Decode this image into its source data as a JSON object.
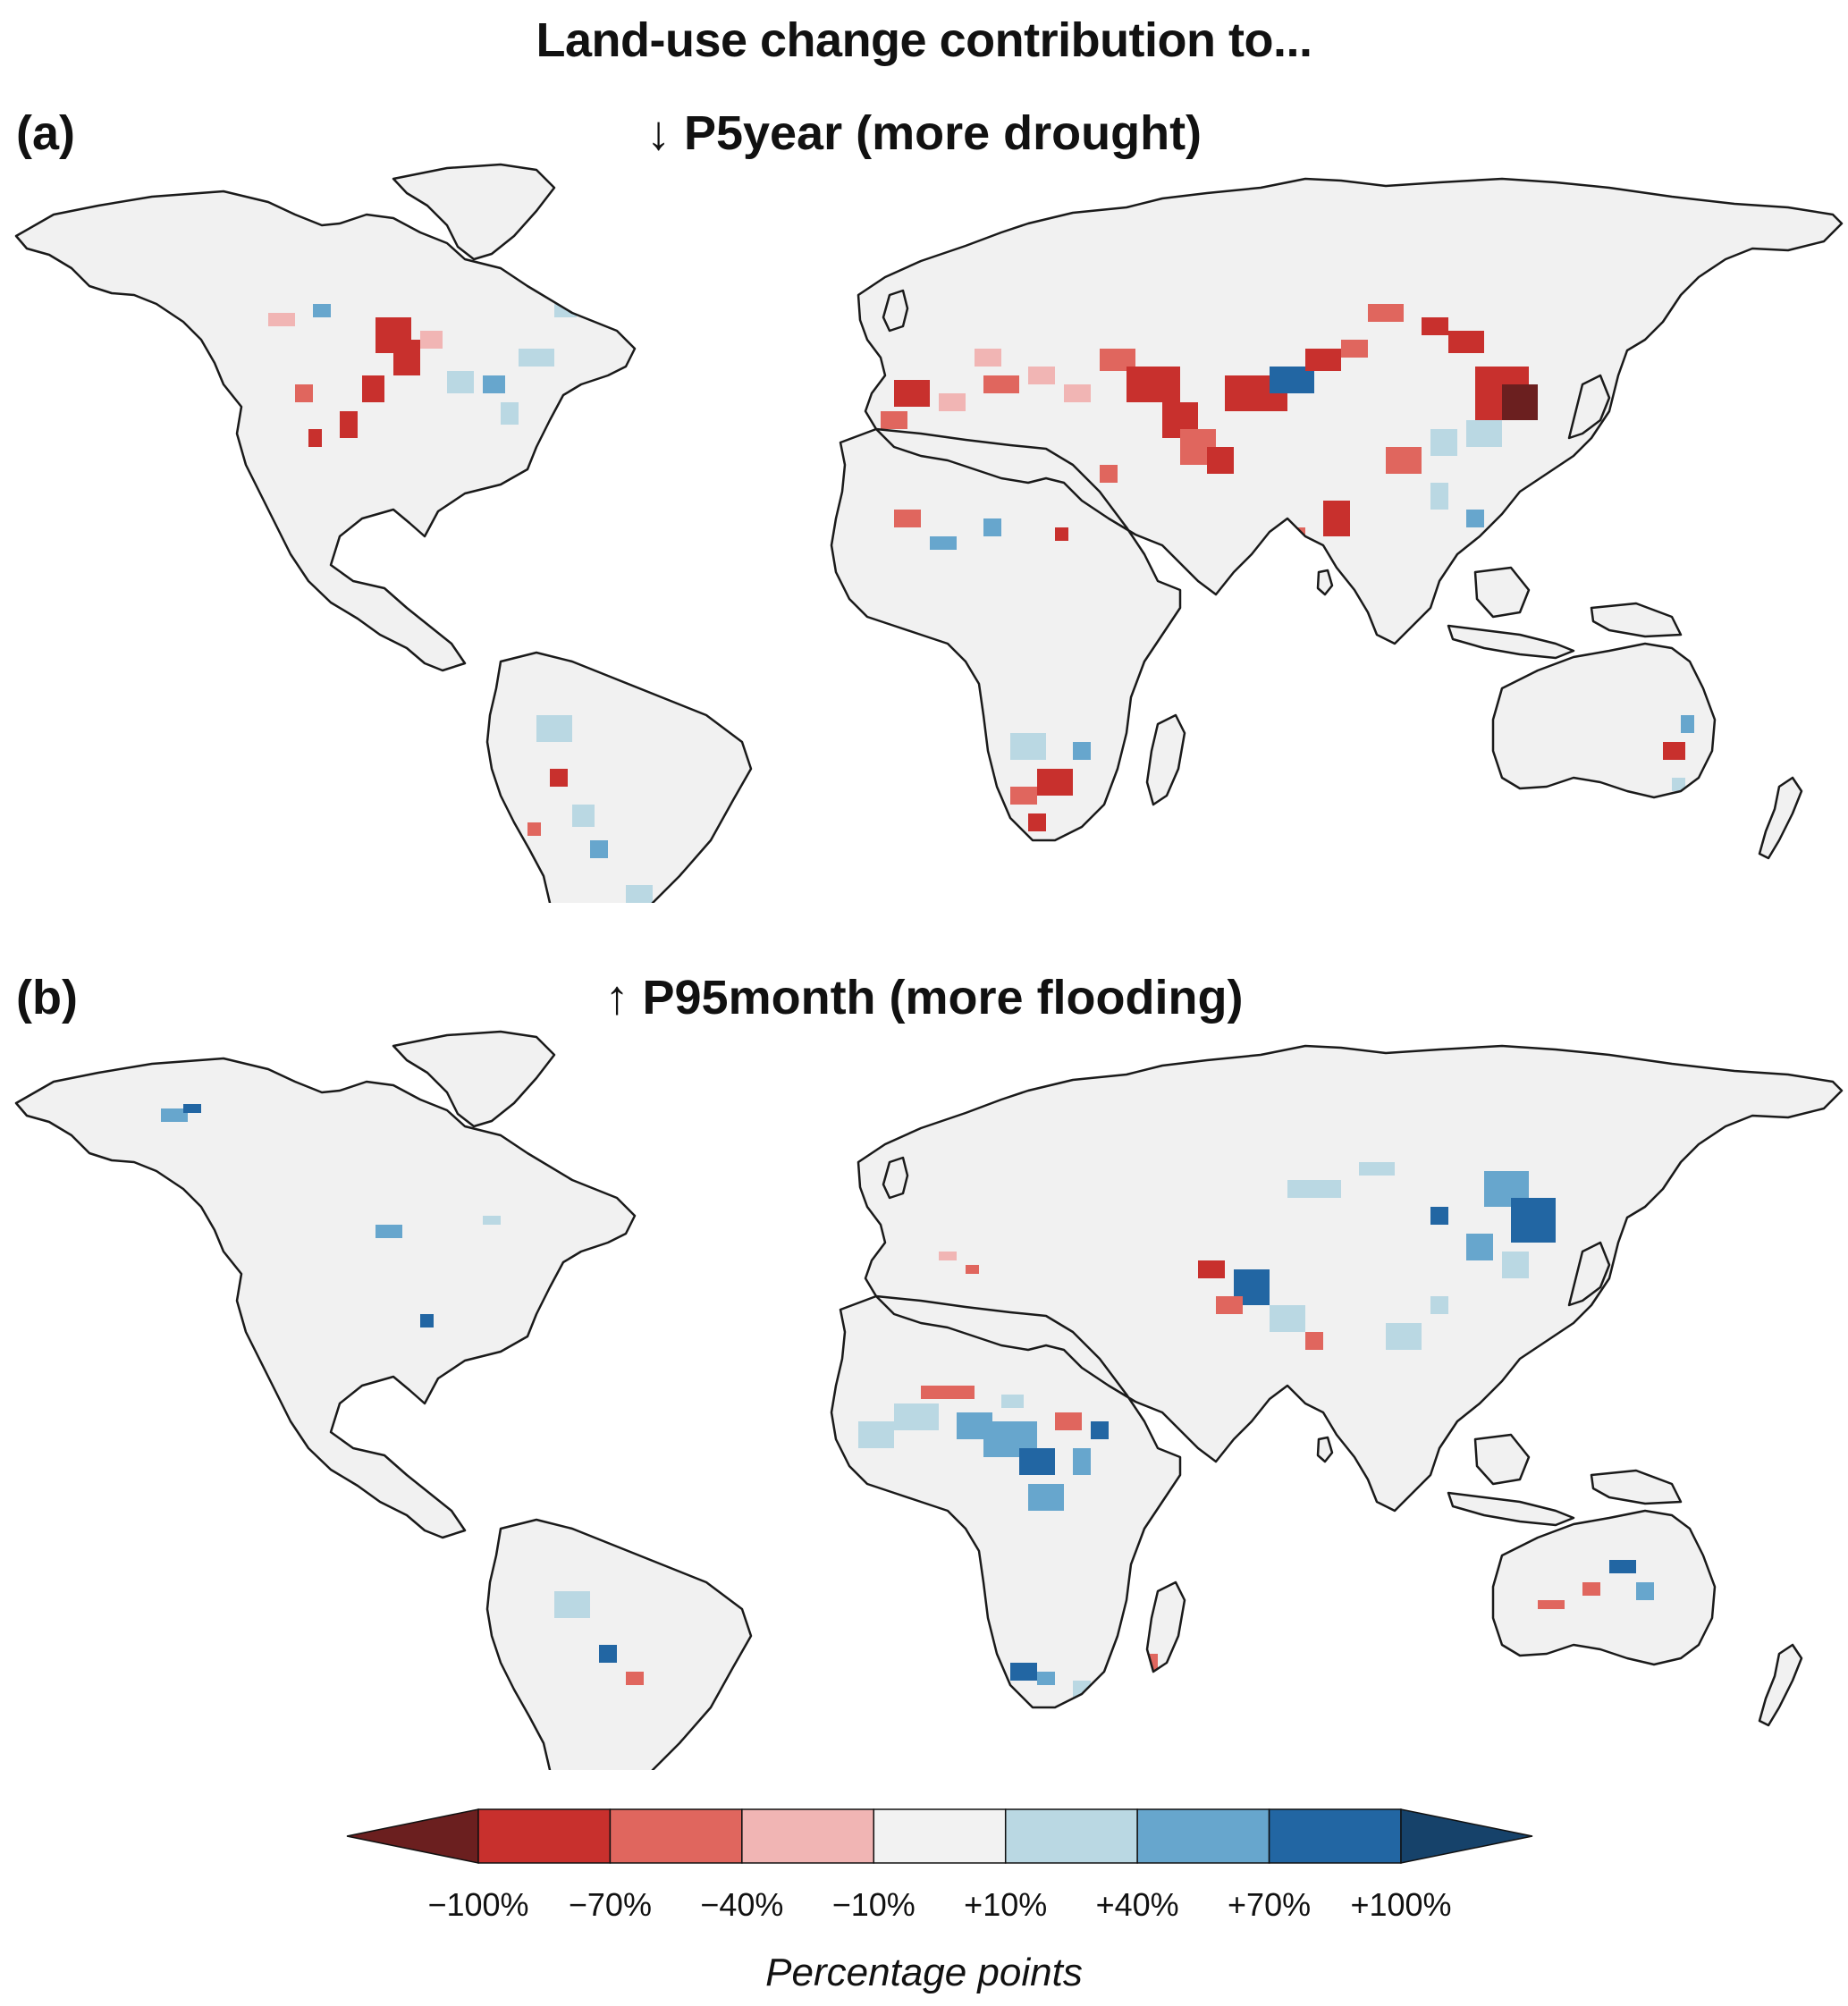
{
  "figure": {
    "title": "Land-use change contribution to...",
    "panels": [
      {
        "label": "(a)",
        "title": "↓ P5year (more drought)"
      },
      {
        "label": "(b)",
        "title": "↑ P95month (more flooding)"
      }
    ]
  },
  "colorbar": {
    "ticks": [
      "−100%",
      "−70%",
      "−40%",
      "−10%",
      "+10%",
      "+40%",
      "+70%",
      "+100%"
    ],
    "label": "Percentage points",
    "colors": {
      "below_min": "#6b1f1f",
      "bins": [
        "#c8302d",
        "#e0665e",
        "#f1b5b4",
        "#f2f2f2",
        "#bad8e3",
        "#67a6cd",
        "#2266a3"
      ],
      "above_max": "#16426a"
    }
  },
  "map_style": {
    "land_fill": "#f1f1f1",
    "coastline_color": "#1a1a1a",
    "ocean_color": "#ffffff"
  }
}
